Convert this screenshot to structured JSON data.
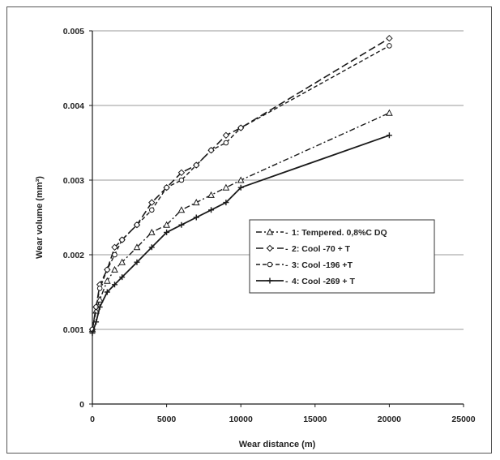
{
  "chart_data": {
    "type": "line",
    "xlabel": "Wear distance (m)",
    "ylabel": "Wear volume (mm³)",
    "xlim": [
      0,
      25000
    ],
    "ylim": [
      0,
      0.005
    ],
    "xticks": [
      "0",
      "5000",
      "10000",
      "15000",
      "20000",
      "25000"
    ],
    "yticks": [
      "0",
      "0.001",
      "0.002",
      "0.003",
      "0.004",
      "0.005"
    ],
    "grid": "horizontal",
    "legend_position": "center-right",
    "series": [
      {
        "name": "1: Tempered. 0,8%C DQ",
        "marker": "triangle",
        "dash": "dash-dot",
        "x": [
          0,
          250,
          500,
          1000,
          1500,
          2000,
          3000,
          4000,
          5000,
          6000,
          7000,
          8000,
          9000,
          10000,
          20000
        ],
        "y": [
          0.001,
          0.00125,
          0.0014,
          0.00165,
          0.0018,
          0.0019,
          0.0021,
          0.0023,
          0.0024,
          0.0026,
          0.0027,
          0.0028,
          0.0029,
          0.003,
          0.0039
        ]
      },
      {
        "name": "2: Cool -70 + T",
        "marker": "diamond",
        "dash": "long-dash",
        "x": [
          0,
          250,
          500,
          1000,
          1500,
          2000,
          3000,
          4000,
          5000,
          6000,
          7000,
          8000,
          9000,
          10000,
          20000
        ],
        "y": [
          0.001,
          0.0013,
          0.0016,
          0.0018,
          0.0021,
          0.0022,
          0.0024,
          0.0027,
          0.0029,
          0.0031,
          0.0032,
          0.0034,
          0.0036,
          0.0037,
          0.0049
        ]
      },
      {
        "name": "3: Cool -196 +T",
        "marker": "circle",
        "dash": "dash",
        "x": [
          0,
          250,
          500,
          1000,
          1500,
          2000,
          3000,
          4000,
          5000,
          6000,
          7000,
          8000,
          9000,
          10000,
          20000
        ],
        "y": [
          0.001,
          0.0013,
          0.00155,
          0.0018,
          0.002,
          0.0022,
          0.0024,
          0.0026,
          0.0029,
          0.003,
          0.0032,
          0.0034,
          0.0035,
          0.0037,
          0.0048
        ]
      },
      {
        "name": "4: Cool -269 + T",
        "marker": "plus",
        "dash": "solid",
        "x": [
          0,
          250,
          500,
          1000,
          1500,
          2000,
          3000,
          4000,
          5000,
          6000,
          7000,
          8000,
          9000,
          10000,
          20000
        ],
        "y": [
          0.00095,
          0.0011,
          0.0013,
          0.0015,
          0.0016,
          0.0017,
          0.0019,
          0.0021,
          0.0023,
          0.0024,
          0.0025,
          0.0026,
          0.0027,
          0.0029,
          0.0036
        ]
      }
    ]
  },
  "colors": {
    "line": "#1a1a1a",
    "grid": "#9a9a9a",
    "frame": "#555555",
    "background": "#ffffff"
  }
}
